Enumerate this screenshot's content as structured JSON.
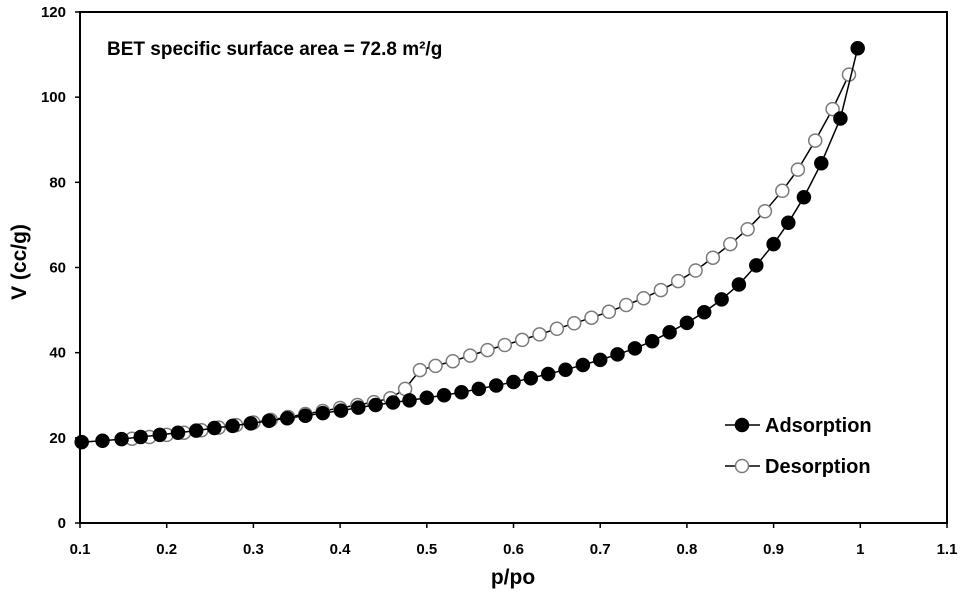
{
  "chart_data": {
    "type": "scatter",
    "title": "",
    "annotation": "BET specific surface area = 72.8 m²/g",
    "xlabel": "p/po",
    "ylabel": "V (cc/g)",
    "xlim": [
      0.1,
      1.1
    ],
    "ylim": [
      0,
      120
    ],
    "xticks": [
      "0.1",
      "0.2",
      "0.3",
      "0.4",
      "0.5",
      "0.6",
      "0.7",
      "0.8",
      "0.9",
      "1",
      "1.1"
    ],
    "yticks": [
      "0",
      "20",
      "40",
      "60",
      "80",
      "100",
      "120"
    ],
    "grid": false,
    "legend_position": "bottom-right",
    "series": [
      {
        "name": "Adsorption",
        "marker": "filled-circle",
        "color": "#000000",
        "points": [
          [
            0.102,
            19.0
          ],
          [
            0.126,
            19.3
          ],
          [
            0.148,
            19.7
          ],
          [
            0.17,
            20.2
          ],
          [
            0.192,
            20.7
          ],
          [
            0.213,
            21.2
          ],
          [
            0.234,
            21.7
          ],
          [
            0.255,
            22.3
          ],
          [
            0.276,
            22.8
          ],
          [
            0.297,
            23.4
          ],
          [
            0.318,
            24.0
          ],
          [
            0.339,
            24.6
          ],
          [
            0.36,
            25.2
          ],
          [
            0.38,
            25.8
          ],
          [
            0.401,
            26.4
          ],
          [
            0.421,
            27.1
          ],
          [
            0.441,
            27.7
          ],
          [
            0.461,
            28.3
          ],
          [
            0.48,
            28.8
          ],
          [
            0.5,
            29.4
          ],
          [
            0.52,
            30.0
          ],
          [
            0.54,
            30.7
          ],
          [
            0.56,
            31.5
          ],
          [
            0.58,
            32.3
          ],
          [
            0.6,
            33.1
          ],
          [
            0.62,
            34.0
          ],
          [
            0.64,
            35.0
          ],
          [
            0.66,
            36.0
          ],
          [
            0.68,
            37.1
          ],
          [
            0.7,
            38.3
          ],
          [
            0.72,
            39.6
          ],
          [
            0.74,
            41.0
          ],
          [
            0.76,
            42.7
          ],
          [
            0.78,
            44.8
          ],
          [
            0.8,
            47.0
          ],
          [
            0.82,
            49.5
          ],
          [
            0.84,
            52.5
          ],
          [
            0.86,
            56.0
          ],
          [
            0.88,
            60.5
          ],
          [
            0.9,
            65.5
          ],
          [
            0.917,
            70.5
          ],
          [
            0.935,
            76.5
          ],
          [
            0.955,
            84.5
          ],
          [
            0.977,
            95.0
          ],
          [
            0.997,
            111.5
          ]
        ]
      },
      {
        "name": "Desorption",
        "marker": "open-circle",
        "color": "#000000",
        "points": [
          [
            0.987,
            105.3
          ],
          [
            0.968,
            97.2
          ],
          [
            0.948,
            89.8
          ],
          [
            0.928,
            83.0
          ],
          [
            0.91,
            78.0
          ],
          [
            0.89,
            73.2
          ],
          [
            0.87,
            69.0
          ],
          [
            0.85,
            65.5
          ],
          [
            0.83,
            62.3
          ],
          [
            0.81,
            59.3
          ],
          [
            0.79,
            56.8
          ],
          [
            0.77,
            54.7
          ],
          [
            0.75,
            52.8
          ],
          [
            0.73,
            51.2
          ],
          [
            0.71,
            49.6
          ],
          [
            0.69,
            48.2
          ],
          [
            0.67,
            46.9
          ],
          [
            0.65,
            45.6
          ],
          [
            0.63,
            44.3
          ],
          [
            0.61,
            43.0
          ],
          [
            0.59,
            41.8
          ],
          [
            0.57,
            40.6
          ],
          [
            0.55,
            39.3
          ],
          [
            0.53,
            38.0
          ],
          [
            0.51,
            36.9
          ],
          [
            0.492,
            35.9
          ],
          [
            0.475,
            31.5
          ],
          [
            0.458,
            29.3
          ],
          [
            0.439,
            28.4
          ],
          [
            0.42,
            27.7
          ],
          [
            0.4,
            27.0
          ],
          [
            0.38,
            26.3
          ],
          [
            0.36,
            25.6
          ],
          [
            0.34,
            24.9
          ],
          [
            0.32,
            24.2
          ],
          [
            0.3,
            23.6
          ],
          [
            0.28,
            23.0
          ],
          [
            0.26,
            22.4
          ],
          [
            0.24,
            21.8
          ],
          [
            0.22,
            21.2
          ],
          [
            0.2,
            20.7
          ],
          [
            0.18,
            20.2
          ],
          [
            0.16,
            19.8
          ]
        ]
      }
    ]
  }
}
